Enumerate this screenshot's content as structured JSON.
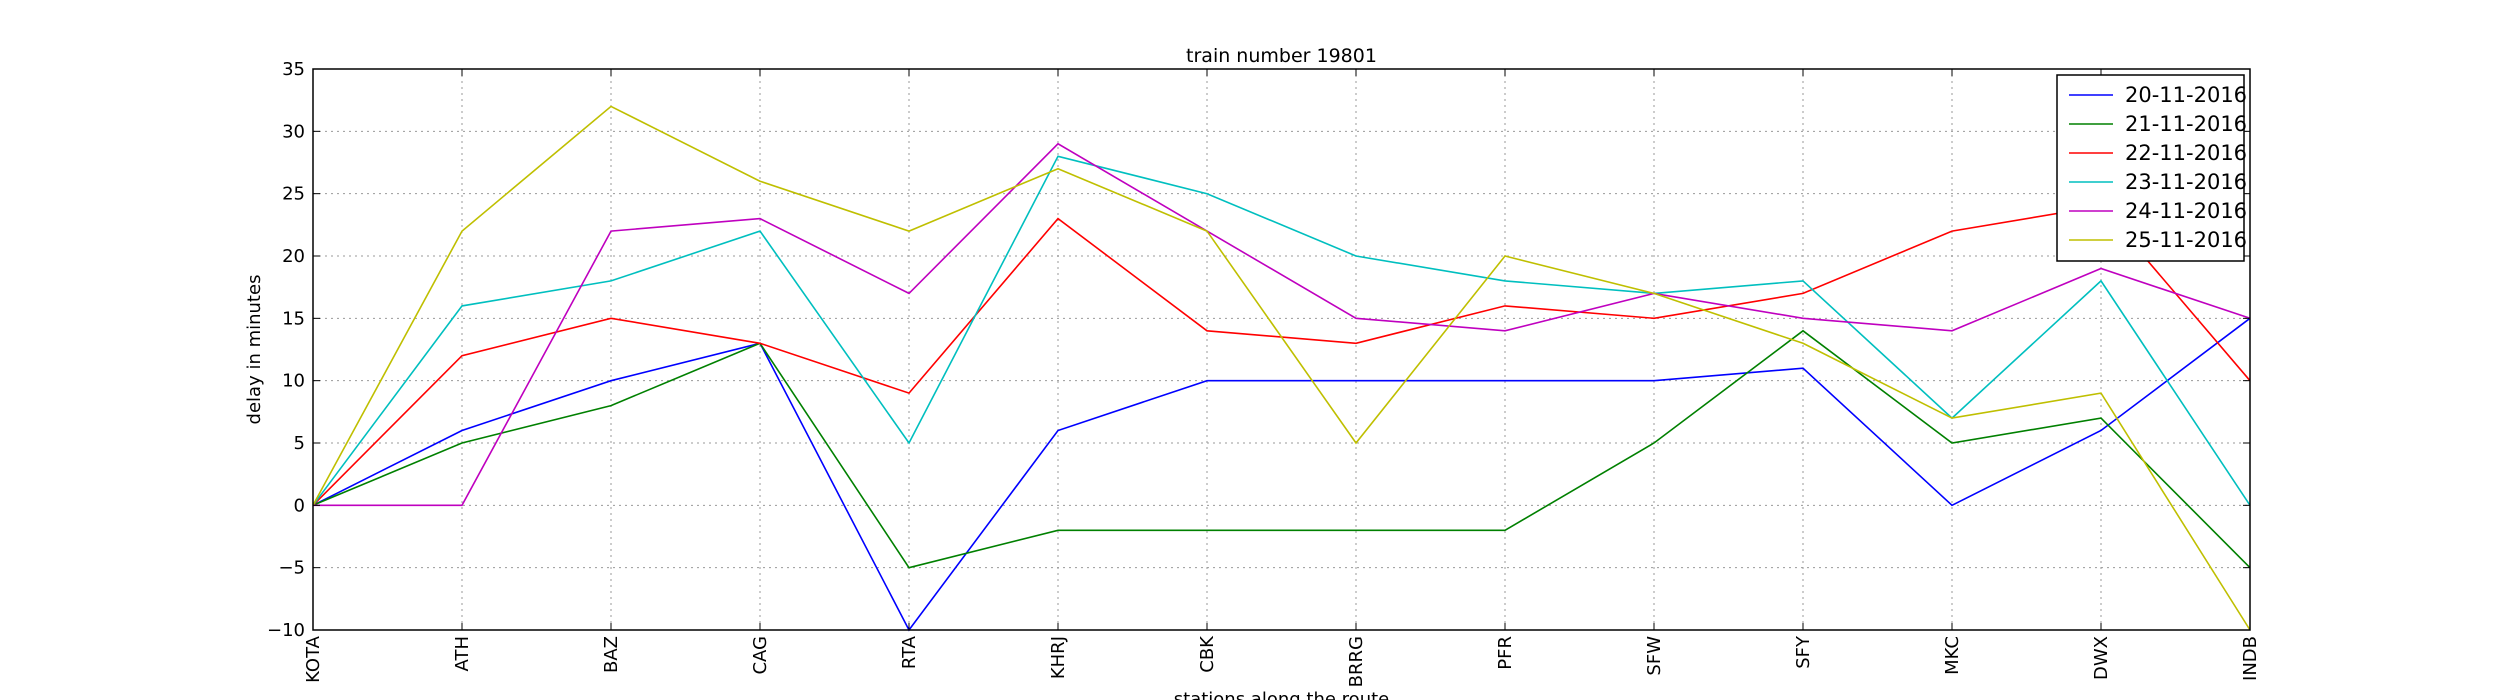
{
  "chart_data": {
    "type": "line",
    "title": "train number 19801",
    "xlabel": "stations along the route",
    "ylabel": "delay in minutes",
    "ylim": [
      -10,
      35
    ],
    "yticks": [
      -10,
      -5,
      0,
      5,
      10,
      15,
      20,
      25,
      30,
      35
    ],
    "grid": true,
    "legend_position": "top-right",
    "categories": [
      "KOTA",
      "ATH",
      "BAZ",
      "CAG",
      "RTA",
      "KHRJ",
      "CBK",
      "BRRG",
      "PFR",
      "SFW",
      "SFY",
      "MKC",
      "DWX",
      "INDB"
    ],
    "series": [
      {
        "name": "20-11-2016",
        "color": "#0000ff",
        "values": [
          0,
          6,
          10,
          13,
          -10,
          6,
          10,
          10,
          10,
          10,
          11,
          0,
          6,
          15
        ]
      },
      {
        "name": "21-11-2016",
        "color": "#008000",
        "values": [
          0,
          5,
          8,
          13,
          -5,
          -2,
          -2,
          -2,
          -2,
          5,
          14,
          5,
          7,
          -5
        ]
      },
      {
        "name": "22-11-2016",
        "color": "#ff0000",
        "values": [
          0,
          12,
          15,
          13,
          9,
          23,
          14,
          13,
          16,
          15,
          17,
          22,
          24,
          10
        ]
      },
      {
        "name": "23-11-2016",
        "color": "#00bfbf",
        "values": [
          0,
          16,
          18,
          22,
          5,
          28,
          25,
          20,
          18,
          17,
          18,
          7,
          18,
          0
        ]
      },
      {
        "name": "24-11-2016",
        "color": "#bf00bf",
        "values": [
          0,
          0,
          22,
          23,
          17,
          29,
          22,
          15,
          14,
          17,
          15,
          14,
          19,
          15
        ]
      },
      {
        "name": "25-11-2016",
        "color": "#bfbf00",
        "values": [
          0,
          22,
          32,
          26,
          22,
          27,
          22,
          5,
          20,
          17,
          13,
          7,
          9,
          -10
        ]
      }
    ]
  }
}
